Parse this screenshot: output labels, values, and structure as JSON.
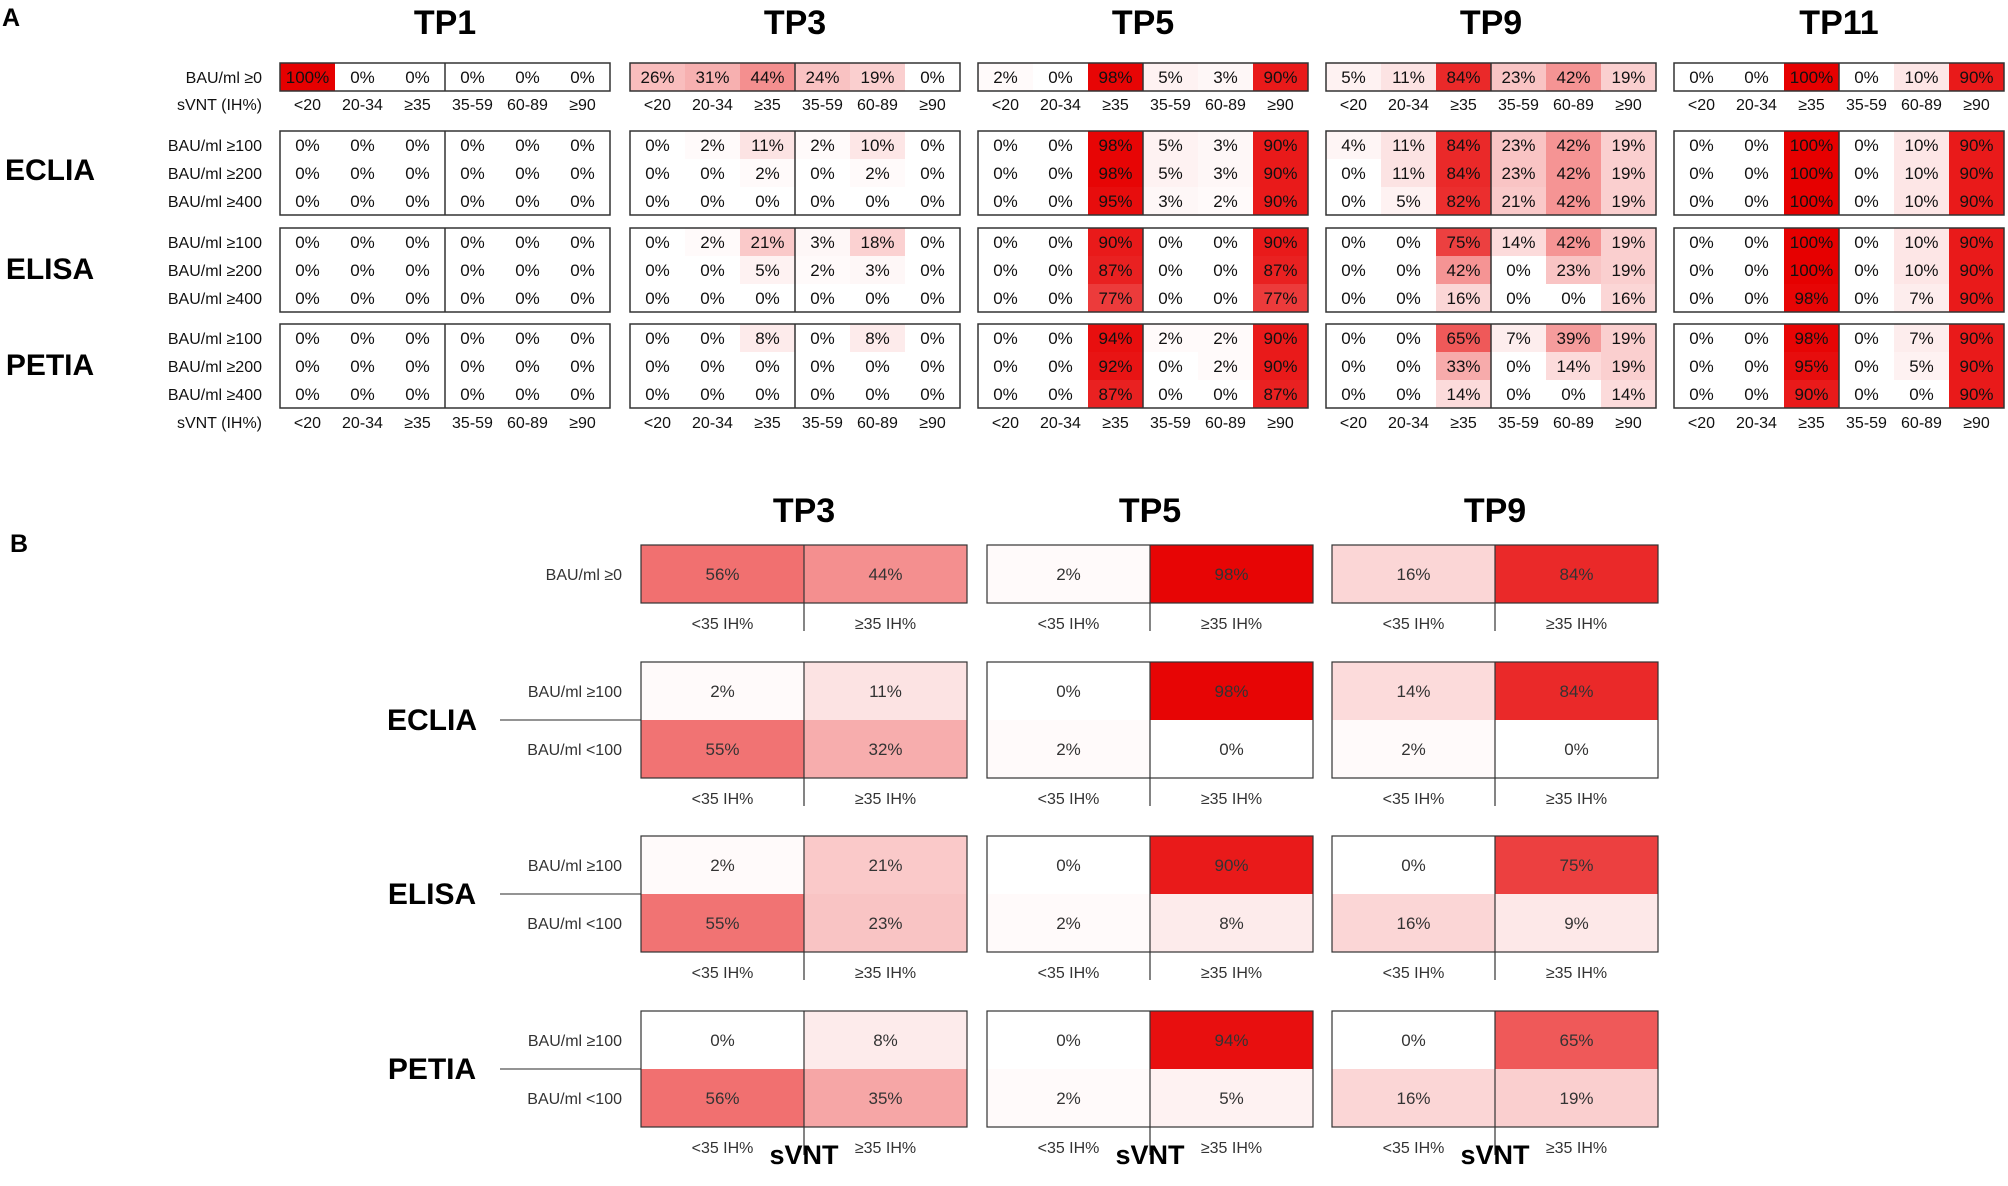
{
  "panels": {
    "a": "A",
    "b": "B"
  },
  "colors": {
    "scale_low": "#ffffff",
    "scale_high": "#e60000",
    "border": "#333333"
  },
  "chart_data": [
    {
      "type": "heatmap",
      "panel": "A",
      "value_scale": [
        0,
        100
      ],
      "unit": "%",
      "row_header": "sVNT (IH%)",
      "columns": [
        "<20",
        "20-34",
        "≥35",
        "35-59",
        "60-89",
        "≥90"
      ],
      "top_row": {
        "label": "BAU/ml ≥0"
      },
      "assays": [
        {
          "name": "ECLIA",
          "rows": [
            "BAU/ml ≥100",
            "BAU/ml ≥200",
            "BAU/ml ≥400"
          ]
        },
        {
          "name": "ELISA",
          "rows": [
            "BAU/ml ≥100",
            "BAU/ml ≥200",
            "BAU/ml ≥400"
          ]
        },
        {
          "name": "PETIA",
          "rows": [
            "BAU/ml ≥100",
            "BAU/ml ≥200",
            "BAU/ml ≥400"
          ]
        }
      ],
      "timepoints": [
        {
          "name": "TP1",
          "top": [
            100,
            0,
            0,
            0,
            0,
            0
          ],
          "assays": [
            [
              [
                0,
                0,
                0,
                0,
                0,
                0
              ],
              [
                0,
                0,
                0,
                0,
                0,
                0
              ],
              [
                0,
                0,
                0,
                0,
                0,
                0
              ]
            ],
            [
              [
                0,
                0,
                0,
                0,
                0,
                0
              ],
              [
                0,
                0,
                0,
                0,
                0,
                0
              ],
              [
                0,
                0,
                0,
                0,
                0,
                0
              ]
            ],
            [
              [
                0,
                0,
                0,
                0,
                0,
                0
              ],
              [
                0,
                0,
                0,
                0,
                0,
                0
              ],
              [
                0,
                0,
                0,
                0,
                0,
                0
              ]
            ]
          ]
        },
        {
          "name": "TP3",
          "top": [
            26,
            31,
            44,
            24,
            19,
            0
          ],
          "assays": [
            [
              [
                0,
                2,
                11,
                2,
                10,
                0
              ],
              [
                0,
                0,
                2,
                0,
                2,
                0
              ],
              [
                0,
                0,
                0,
                0,
                0,
                0
              ]
            ],
            [
              [
                0,
                2,
                21,
                3,
                18,
                0
              ],
              [
                0,
                0,
                5,
                2,
                3,
                0
              ],
              [
                0,
                0,
                0,
                0,
                0,
                0
              ]
            ],
            [
              [
                0,
                0,
                8,
                0,
                8,
                0
              ],
              [
                0,
                0,
                0,
                0,
                0,
                0
              ],
              [
                0,
                0,
                0,
                0,
                0,
                0
              ]
            ]
          ]
        },
        {
          "name": "TP5",
          "top": [
            2,
            0,
            98,
            5,
            3,
            90
          ],
          "assays": [
            [
              [
                0,
                0,
                98,
                5,
                3,
                90
              ],
              [
                0,
                0,
                98,
                5,
                3,
                90
              ],
              [
                0,
                0,
                95,
                3,
                2,
                90
              ]
            ],
            [
              [
                0,
                0,
                90,
                0,
                0,
                90
              ],
              [
                0,
                0,
                87,
                0,
                0,
                87
              ],
              [
                0,
                0,
                77,
                0,
                0,
                77
              ]
            ],
            [
              [
                0,
                0,
                94,
                2,
                2,
                90
              ],
              [
                0,
                0,
                92,
                0,
                2,
                90
              ],
              [
                0,
                0,
                87,
                0,
                0,
                87
              ]
            ]
          ]
        },
        {
          "name": "TP9",
          "top": [
            5,
            11,
            84,
            23,
            42,
            19
          ],
          "assays": [
            [
              [
                4,
                11,
                84,
                23,
                42,
                19
              ],
              [
                0,
                11,
                84,
                23,
                42,
                19
              ],
              [
                0,
                5,
                82,
                21,
                42,
                19
              ]
            ],
            [
              [
                0,
                0,
                75,
                14,
                42,
                19
              ],
              [
                0,
                0,
                42,
                0,
                23,
                19
              ],
              [
                0,
                0,
                16,
                0,
                0,
                16
              ]
            ],
            [
              [
                0,
                0,
                65,
                7,
                39,
                19
              ],
              [
                0,
                0,
                33,
                0,
                14,
                19
              ],
              [
                0,
                0,
                14,
                0,
                0,
                14
              ]
            ]
          ]
        },
        {
          "name": "TP11",
          "top": [
            0,
            0,
            100,
            0,
            10,
            90
          ],
          "assays": [
            [
              [
                0,
                0,
                100,
                0,
                10,
                90
              ],
              [
                0,
                0,
                100,
                0,
                10,
                90
              ],
              [
                0,
                0,
                100,
                0,
                10,
                90
              ]
            ],
            [
              [
                0,
                0,
                100,
                0,
                10,
                90
              ],
              [
                0,
                0,
                100,
                0,
                10,
                90
              ],
              [
                0,
                0,
                98,
                0,
                7,
                90
              ]
            ],
            [
              [
                0,
                0,
                98,
                0,
                7,
                90
              ],
              [
                0,
                0,
                95,
                0,
                5,
                90
              ],
              [
                0,
                0,
                90,
                0,
                0,
                90
              ]
            ]
          ]
        }
      ]
    },
    {
      "type": "heatmap",
      "panel": "B",
      "value_scale": [
        0,
        100
      ],
      "unit": "%",
      "columns": [
        "<35 IH%",
        "≥35 IH%"
      ],
      "x_title": "sVNT",
      "top_row": {
        "label": "BAU/ml  ≥0"
      },
      "assays": [
        {
          "name": "ECLIA",
          "rows": [
            "BAU/ml  ≥100",
            "BAU/ml <100"
          ]
        },
        {
          "name": "ELISA",
          "rows": [
            "BAU/ml  ≥100",
            "BAU/ml <100"
          ]
        },
        {
          "name": "PETIA",
          "rows": [
            "BAU/ml  ≥100",
            "BAU/ml <100"
          ]
        }
      ],
      "timepoints": [
        {
          "name": "TP3",
          "top": [
            56,
            44
          ],
          "assays": [
            [
              [
                2,
                11
              ],
              [
                55,
                32
              ]
            ],
            [
              [
                2,
                21
              ],
              [
                55,
                23
              ]
            ],
            [
              [
                0,
                8
              ],
              [
                56,
                35
              ]
            ]
          ]
        },
        {
          "name": "TP5",
          "top": [
            2,
            98
          ],
          "assays": [
            [
              [
                0,
                98
              ],
              [
                2,
                0
              ]
            ],
            [
              [
                0,
                90
              ],
              [
                2,
                8
              ]
            ],
            [
              [
                0,
                94
              ],
              [
                2,
                5
              ]
            ]
          ]
        },
        {
          "name": "TP9",
          "top": [
            16,
            84
          ],
          "assays": [
            [
              [
                14,
                84
              ],
              [
                2,
                0
              ]
            ],
            [
              [
                0,
                75
              ],
              [
                16,
                9
              ]
            ],
            [
              [
                0,
                65
              ],
              [
                16,
                19
              ]
            ]
          ]
        }
      ]
    }
  ]
}
